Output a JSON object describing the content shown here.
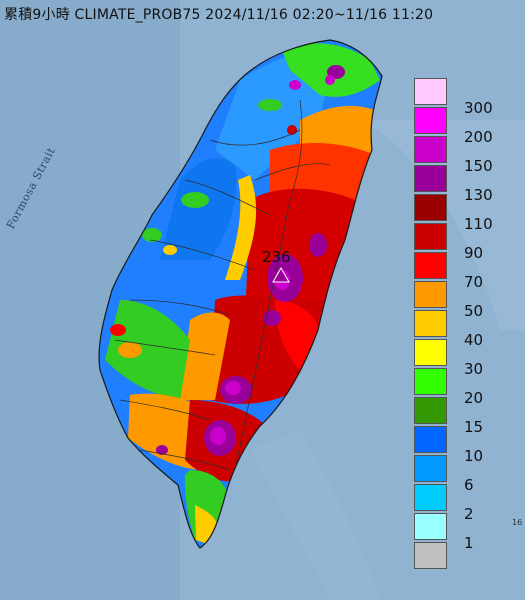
{
  "title": "累積9小時 CLIMATE_PROB75 2024/11/16 02:20~11/16 11:20",
  "strait_label": "Formosa Strait",
  "max_value_label": "236",
  "edge_mark": "16",
  "legend": [
    {
      "label": "300",
      "color": "#ffc8ff"
    },
    {
      "label": "200",
      "color": "#ff00ff"
    },
    {
      "label": "150",
      "color": "#cc00cc"
    },
    {
      "label": "130",
      "color": "#990099"
    },
    {
      "label": "110",
      "color": "#990000"
    },
    {
      "label": "90",
      "color": "#cc0000"
    },
    {
      "label": "70",
      "color": "#ff0000"
    },
    {
      "label": "50",
      "color": "#ff9900"
    },
    {
      "label": "40",
      "color": "#ffcc00"
    },
    {
      "label": "30",
      "color": "#ffff00"
    },
    {
      "label": "20",
      "color": "#33ff00"
    },
    {
      "label": "15",
      "color": "#339900"
    },
    {
      "label": "10",
      "color": "#0066ff"
    },
    {
      "label": "6",
      "color": "#0099ff"
    },
    {
      "label": "2",
      "color": "#00ccff"
    },
    {
      "label": "1",
      "color": "#99ffff"
    },
    {
      "label": "",
      "color": "#c0c0c0"
    }
  ]
}
